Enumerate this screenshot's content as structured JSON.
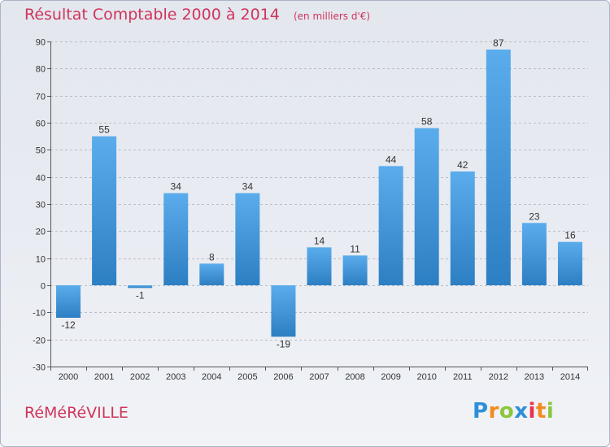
{
  "header": {
    "title": "Résultat Comptable 2000 à 2014",
    "subtitle": "(en milliers d'€)"
  },
  "footer": {
    "commune": "RéMéRéVILLE",
    "brand": "Proxiti",
    "brand_letters": [
      "P",
      "r",
      "o",
      "x",
      "i",
      "t",
      "i"
    ],
    "brand_colors": [
      "#2e8fd8",
      "#f28c1e",
      "#8cc63f",
      "#2e8fd8",
      "#e6334d",
      "#f28c1e",
      "#8cc63f"
    ]
  },
  "chart_data": {
    "type": "bar",
    "title": "Résultat Comptable 2000 à 2014",
    "subtitle": "(en milliers d'€)",
    "categories": [
      "2000",
      "2001",
      "2002",
      "2003",
      "2004",
      "2005",
      "2006",
      "2007",
      "2008",
      "2009",
      "2010",
      "2011",
      "2012",
      "2013",
      "2014"
    ],
    "values": [
      -12,
      55,
      -1,
      34,
      8,
      34,
      -19,
      14,
      11,
      44,
      58,
      42,
      87,
      23,
      16
    ],
    "data_labels": [
      "-12",
      "55",
      "-1",
      "34",
      "8",
      "34",
      "-19",
      "14",
      "11",
      "44",
      "58",
      "42",
      "87",
      "23",
      "16"
    ],
    "y_ticks": [
      90,
      80,
      70,
      60,
      50,
      40,
      30,
      20,
      10,
      0,
      -10,
      -20,
      -30
    ],
    "y_tick_labels": [
      "90",
      "80",
      "70",
      "60",
      "50",
      "40",
      "30",
      "20",
      "10",
      "0",
      "-10",
      "-20",
      "-30"
    ],
    "ylim": [
      -30,
      90
    ],
    "grid": "horizontal dashed",
    "colors": {
      "bar_light": "#5aacec",
      "bar_dark": "#2d7fc3",
      "grid": "#b8bec8",
      "axis": "#555555",
      "accent": "#d0345a"
    }
  }
}
